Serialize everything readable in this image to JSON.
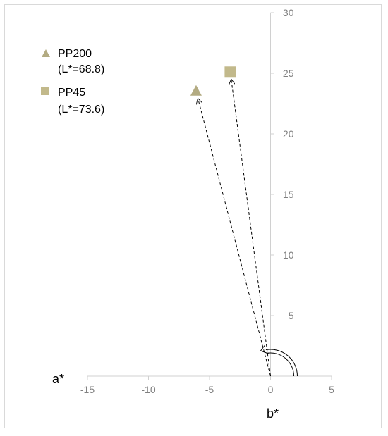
{
  "chart_data": {
    "type": "scatter",
    "title": "",
    "xlabel": "a*",
    "ylabel": "b*",
    "xlim": [
      -15,
      5
    ],
    "ylim": [
      0,
      30
    ],
    "x_ticks": [
      "-15",
      "-10",
      "-5",
      "0",
      "5"
    ],
    "y_ticks": [
      "5",
      "10",
      "15",
      "20",
      "25",
      "30"
    ],
    "grid": false,
    "legend_position": "top-left",
    "series": [
      {
        "name": "PP200",
        "sublabel": "(L*=68.8)",
        "marker": "triangle",
        "color": "#b3ab82",
        "x": -6.1,
        "y": 23.5
      },
      {
        "name": "PP45",
        "sublabel": "(L*=73.6)",
        "marker": "square",
        "color": "#c2b98b",
        "x": -3.3,
        "y": 25.1
      }
    ],
    "annotations": [
      {
        "type": "dashed-arrow",
        "from": [
          0,
          0
        ],
        "to": [
          -6.1,
          23.5
        ]
      },
      {
        "type": "dashed-arrow",
        "from": [
          0,
          0
        ],
        "to": [
          -3.3,
          25.1
        ]
      },
      {
        "type": "hue-angle-arc",
        "center": [
          0,
          0
        ]
      }
    ]
  }
}
